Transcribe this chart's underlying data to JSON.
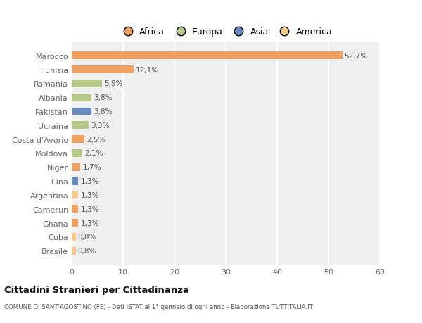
{
  "categories": [
    "Brasile",
    "Cuba",
    "Ghana",
    "Camerun",
    "Argentina",
    "Cina",
    "Niger",
    "Moldova",
    "Costa d'Avorio",
    "Ucraina",
    "Pakistan",
    "Albania",
    "Romania",
    "Tunisia",
    "Marocco"
  ],
  "values": [
    0.8,
    0.8,
    1.3,
    1.3,
    1.3,
    1.3,
    1.7,
    2.1,
    2.5,
    3.3,
    3.8,
    3.8,
    5.9,
    12.1,
    52.7
  ],
  "labels": [
    "0,8%",
    "0,8%",
    "1,3%",
    "1,3%",
    "1,3%",
    "1,3%",
    "1,7%",
    "2,1%",
    "2,5%",
    "3,3%",
    "3,8%",
    "3,8%",
    "5,9%",
    "12,1%",
    "52,7%"
  ],
  "colors": [
    "#f5c98a",
    "#f5c98a",
    "#f0a060",
    "#f0a060",
    "#f5c98a",
    "#6688bb",
    "#f0a060",
    "#b5c98a",
    "#f0a060",
    "#b5c98a",
    "#6688bb",
    "#b5c98a",
    "#b5c98a",
    "#f0a060",
    "#f0a060"
  ],
  "continent_colors": {
    "Africa": "#f0a060",
    "Europa": "#b5c98a",
    "Asia": "#6688bb",
    "America": "#f5c98a"
  },
  "background_color": "#ffffff",
  "plot_bg_color": "#f0f0f0",
  "title": "Cittadini Stranieri per Cittadinanza",
  "subtitle": "COMUNE DI SANT'AGOSTINO (FE) - Dati ISTAT al 1° gennaio di ogni anno - Elaborazione TUTTITALIA.IT",
  "xlim": [
    0,
    60
  ],
  "xticks": [
    0,
    10,
    20,
    30,
    40,
    50,
    60
  ]
}
